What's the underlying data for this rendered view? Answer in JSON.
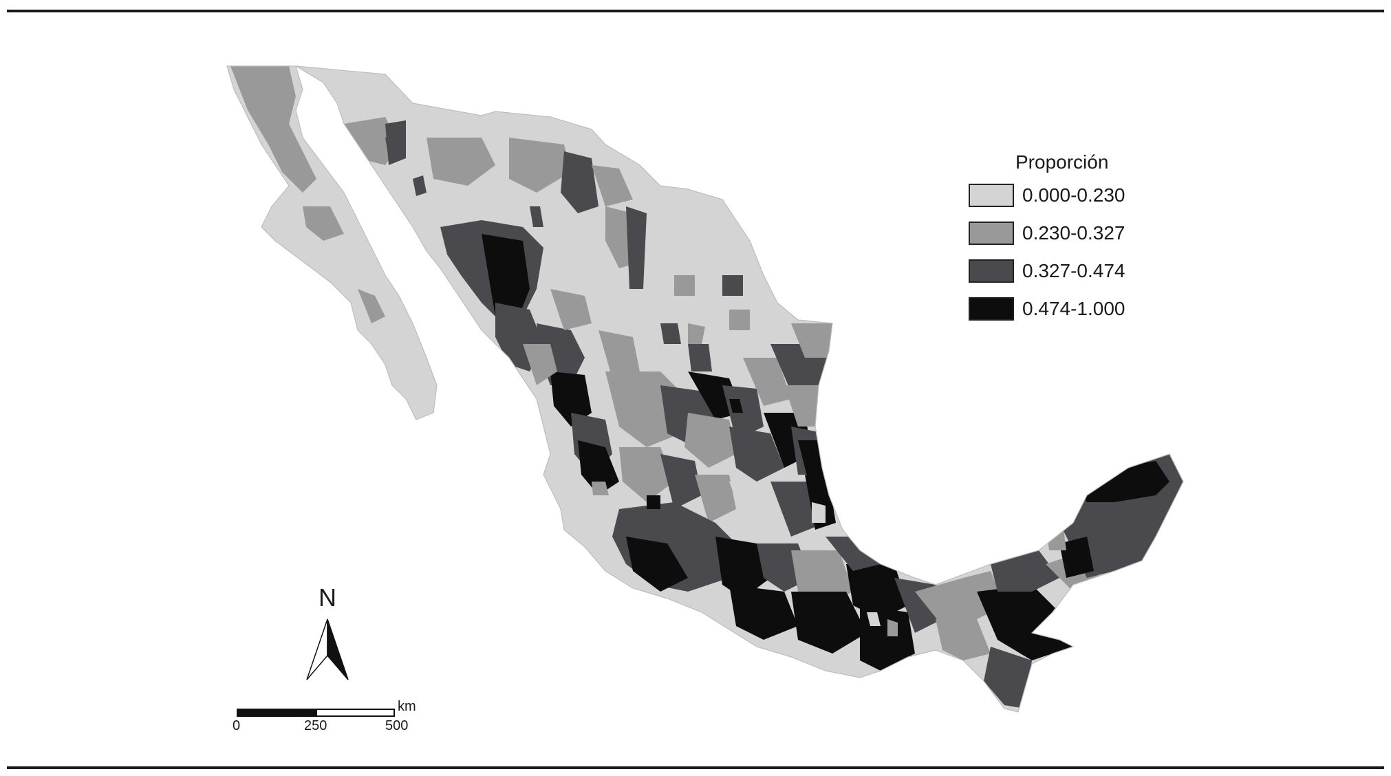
{
  "legend": {
    "title": "Proporción",
    "classes": [
      {
        "label": "0.000-0.230",
        "color": "#d4d4d4"
      },
      {
        "label": "0.230-0.327",
        "color": "#999999"
      },
      {
        "label": "0.327-0.474",
        "color": "#4a4a4e"
      },
      {
        "label": "0.474-1.000",
        "color": "#0d0d0d"
      }
    ]
  },
  "north_arrow": {
    "label": "N"
  },
  "scale_bar": {
    "unit": "km",
    "ticks": [
      "0",
      "250",
      "500"
    ]
  },
  "colors": {
    "frame_rule": "#1a1a1a",
    "background": "#ffffff",
    "outline": "#bdbdbd"
  }
}
